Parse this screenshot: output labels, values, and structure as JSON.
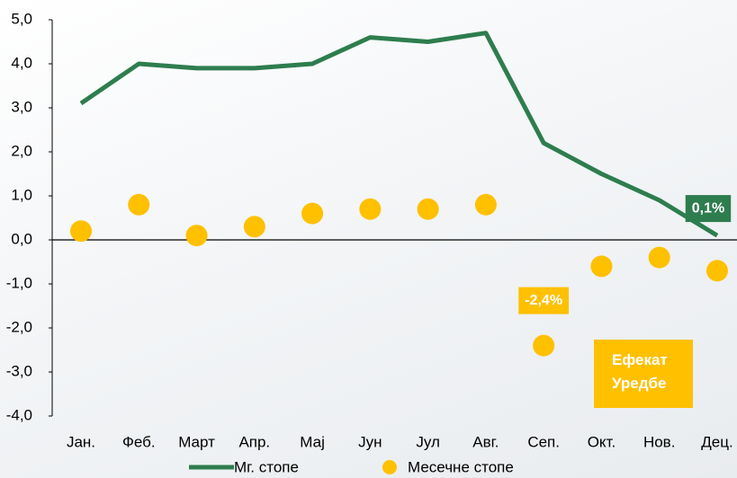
{
  "chart_data": {
    "type": "line-dot",
    "categories": [
      "Јан.",
      "Феб.",
      "Март",
      "Апр.",
      "Мај",
      "Јун",
      "Јул",
      "Авг.",
      "Сеп.",
      "Окт.",
      "Нов.",
      "Дец."
    ],
    "series": [
      {
        "name": "Мг. стопе",
        "color": "#2e7d4e",
        "kind": "line",
        "values": [
          3.1,
          4.0,
          3.9,
          3.9,
          4.0,
          4.6,
          4.5,
          4.7,
          2.2,
          1.5,
          0.9,
          0.1
        ],
        "value_labels": [
          null,
          null,
          null,
          null,
          null,
          null,
          null,
          null,
          null,
          null,
          null,
          "0,1%"
        ]
      },
      {
        "name": "Месечне стопе",
        "color": "#ffc000",
        "kind": "dot",
        "values": [
          0.2,
          0.8,
          0.1,
          0.3,
          0.6,
          0.7,
          0.7,
          0.8,
          -2.4,
          -0.6,
          -0.4,
          -0.7
        ],
        "value_labels": [
          null,
          null,
          null,
          null,
          null,
          null,
          null,
          null,
          "-2,4%",
          null,
          null,
          null
        ]
      }
    ],
    "ylim": [
      -4,
      5
    ],
    "yticks": [
      {
        "value": -4,
        "label": "-4,0"
      },
      {
        "value": -3,
        "label": "-3,0"
      },
      {
        "value": -2,
        "label": "-2,0"
      },
      {
        "value": -1,
        "label": "-1,0"
      },
      {
        "value": 0,
        "label": "0,0"
      },
      {
        "value": 1,
        "label": "1,0"
      },
      {
        "value": 2,
        "label": "2,0"
      },
      {
        "value": 3,
        "label": "3,0"
      },
      {
        "value": 4,
        "label": "4,0"
      },
      {
        "value": 5,
        "label": "5,0"
      }
    ],
    "annotation": "Ефекат Уредбе",
    "grid": false
  }
}
